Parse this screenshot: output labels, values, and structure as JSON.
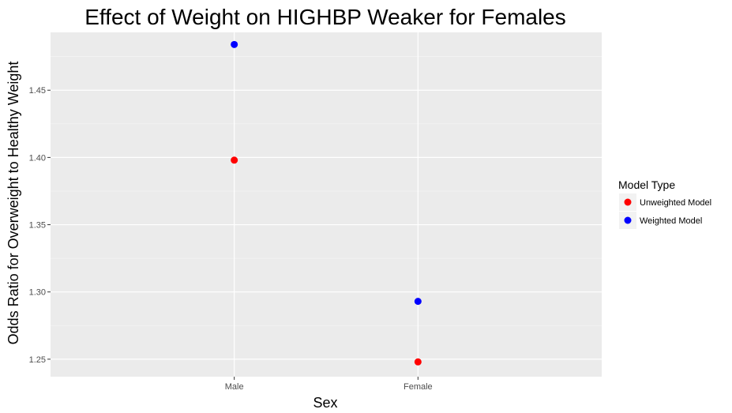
{
  "chart_data": {
    "type": "scatter",
    "title": "Effect of Weight on HIGHBP Weaker for Females",
    "xlabel": "Sex",
    "ylabel": "Odds Ratio for Overweight to Healthy Weight",
    "categories": [
      "Male",
      "Female"
    ],
    "y_ticks": [
      "1.25",
      "1.30",
      "1.35",
      "1.40",
      "1.45"
    ],
    "ylim": [
      1.237,
      1.493
    ],
    "grid": true,
    "legend": {
      "title": "Model Type",
      "position": "right"
    },
    "series": [
      {
        "name": "Unweighted Model",
        "color": "#ff0000",
        "values": [
          1.398,
          1.248
        ]
      },
      {
        "name": "Weighted Model",
        "color": "#0000ff",
        "values": [
          1.484,
          1.293
        ]
      }
    ]
  }
}
